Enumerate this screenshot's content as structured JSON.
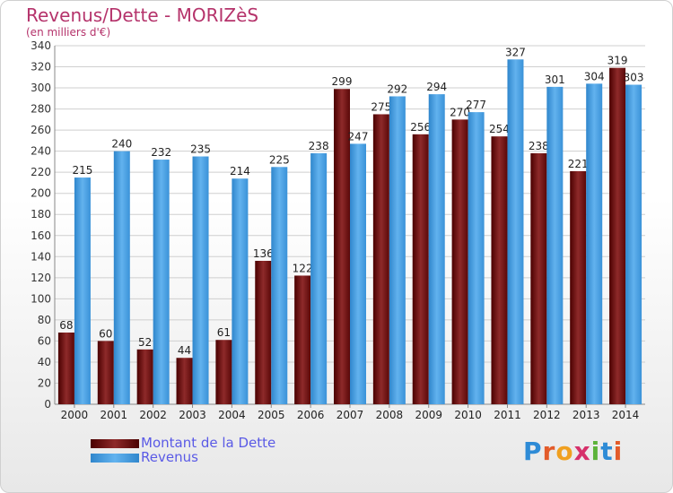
{
  "chart_data": {
    "type": "bar",
    "title": "Revenus/Dette - MORIZèS",
    "subtitle": "(en milliers d'€)",
    "categories": [
      "2000",
      "2001",
      "2002",
      "2003",
      "2004",
      "2005",
      "2006",
      "2007",
      "2008",
      "2009",
      "2010",
      "2011",
      "2012",
      "2013",
      "2014"
    ],
    "series": [
      {
        "name": "Montant de la Dette",
        "color": "#6b1414",
        "values": [
          68,
          60,
          52,
          44,
          61,
          136,
          122,
          299,
          275,
          256,
          270,
          254,
          238,
          221,
          319
        ]
      },
      {
        "name": "Revenus",
        "color": "#3d9be0",
        "values": [
          215,
          240,
          232,
          235,
          214,
          225,
          238,
          247,
          292,
          294,
          277,
          327,
          301,
          304,
          303
        ]
      }
    ],
    "ylim": [
      0,
      340
    ],
    "yticks": [
      0,
      20,
      40,
      60,
      80,
      100,
      120,
      140,
      160,
      180,
      200,
      220,
      240,
      260,
      280,
      300,
      320,
      340
    ],
    "grid": true,
    "legend_position": "bottom-left"
  },
  "logo": {
    "text": "Proxiti",
    "letters": [
      {
        "ch": "P",
        "color": "#2e8bd6"
      },
      {
        "ch": "r",
        "color": "#e35b2a"
      },
      {
        "ch": "o",
        "color": "#f0a020"
      },
      {
        "ch": "x",
        "color": "#d6306a"
      },
      {
        "ch": "i",
        "color": "#5db33a"
      },
      {
        "ch": "t",
        "color": "#2e8bd6"
      },
      {
        "ch": "i",
        "color": "#e35b2a"
      }
    ]
  }
}
